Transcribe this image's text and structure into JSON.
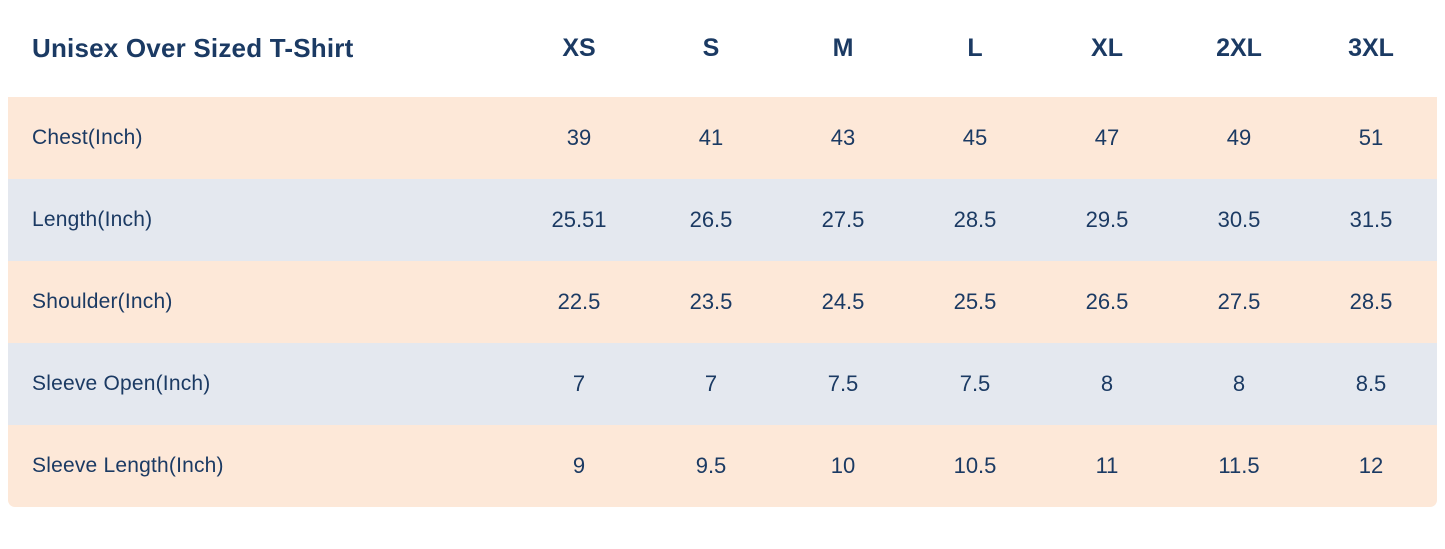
{
  "colors": {
    "text": "#1b3a63",
    "row_peach": "#fde8d8",
    "row_blue": "#e4e8ef",
    "header_bg": "#ffffff"
  },
  "table": {
    "title": "Unisex Over Sized T-Shirt",
    "columns": [
      "XS",
      "S",
      "M",
      "L",
      "XL",
      "2XL",
      "3XL"
    ],
    "rows": [
      {
        "label": "Chest(Inch)",
        "values": [
          "39",
          "41",
          "43",
          "45",
          "47",
          "49",
          "51"
        ]
      },
      {
        "label": "Length(Inch)",
        "values": [
          "25.51",
          "26.5",
          "27.5",
          "28.5",
          "29.5",
          "30.5",
          "31.5"
        ]
      },
      {
        "label": "Shoulder(Inch)",
        "values": [
          "22.5",
          "23.5",
          "24.5",
          "25.5",
          "26.5",
          "27.5",
          "28.5"
        ]
      },
      {
        "label": "Sleeve Open(Inch)",
        "values": [
          "7",
          "7",
          "7.5",
          "7.5",
          "8",
          "8",
          "8.5"
        ]
      },
      {
        "label": "Sleeve Length(Inch)",
        "values": [
          "9",
          "9.5",
          "10",
          "10.5",
          "11",
          "11.5",
          "12"
        ]
      }
    ]
  }
}
